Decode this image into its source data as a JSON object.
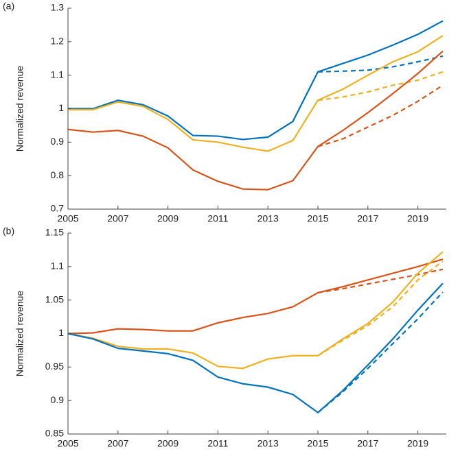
{
  "chart_data": [
    {
      "type": "line",
      "annotation": "(a)",
      "ylabel": "Normalized revenue",
      "x": [
        2005,
        2006,
        2007,
        2008,
        2009,
        2010,
        2011,
        2012,
        2013,
        2014,
        2015,
        2016,
        2017,
        2018,
        2019,
        2020
      ],
      "xlim": [
        2005,
        2020
      ],
      "xticks": [
        2005,
        2007,
        2009,
        2011,
        2013,
        2015,
        2017,
        2019
      ],
      "ylim": [
        0.7,
        1.3
      ],
      "yticks": [
        0.7,
        0.8,
        0.9,
        1,
        1.1,
        1.2,
        1.3
      ],
      "series": [
        {
          "color": "#0072bd",
          "linestyle": "solid",
          "values": [
            1.0,
            1.0,
            1.025,
            1.012,
            0.978,
            0.92,
            0.918,
            0.908,
            0.915,
            0.962,
            1.11,
            1.135,
            1.16,
            1.19,
            1.222,
            1.262
          ]
        },
        {
          "color": "#0072bd",
          "linestyle": "dashed",
          "values": [
            null,
            null,
            null,
            null,
            null,
            null,
            null,
            null,
            null,
            null,
            1.11,
            1.112,
            1.115,
            1.125,
            1.14,
            1.157
          ]
        },
        {
          "color": "#edb120",
          "linestyle": "solid",
          "values": [
            0.997,
            0.997,
            1.02,
            1.007,
            0.968,
            0.907,
            0.9,
            0.885,
            0.873,
            0.905,
            1.025,
            1.058,
            1.1,
            1.14,
            1.17,
            1.218
          ]
        },
        {
          "color": "#edb120",
          "linestyle": "dashed",
          "values": [
            null,
            null,
            null,
            null,
            null,
            null,
            null,
            null,
            null,
            null,
            1.025,
            1.035,
            1.05,
            1.07,
            1.085,
            1.11
          ]
        },
        {
          "color": "#d95319",
          "linestyle": "solid",
          "values": [
            0.938,
            0.93,
            0.935,
            0.918,
            0.883,
            0.817,
            0.783,
            0.76,
            0.758,
            0.785,
            0.887,
            0.935,
            0.988,
            1.045,
            1.105,
            1.172
          ]
        },
        {
          "color": "#d95319",
          "linestyle": "dashed",
          "values": [
            null,
            null,
            null,
            null,
            null,
            null,
            null,
            null,
            null,
            null,
            0.887,
            0.91,
            0.945,
            0.98,
            1.022,
            1.07
          ]
        }
      ]
    },
    {
      "type": "line",
      "annotation": "(b)",
      "ylabel": "Normalized revenue",
      "x": [
        2005,
        2006,
        2007,
        2008,
        2009,
        2010,
        2011,
        2012,
        2013,
        2014,
        2015,
        2016,
        2017,
        2018,
        2019,
        2020
      ],
      "xlim": [
        2005,
        2020
      ],
      "xticks": [
        2005,
        2007,
        2009,
        2011,
        2013,
        2015,
        2017,
        2019
      ],
      "ylim": [
        0.85,
        1.15
      ],
      "yticks": [
        0.85,
        0.9,
        0.95,
        1,
        1.05,
        1.1,
        1.15
      ],
      "series": [
        {
          "color": "#d95319",
          "linestyle": "solid",
          "values": [
            1.0,
            1.001,
            1.007,
            1.006,
            1.004,
            1.004,
            1.016,
            1.024,
            1.03,
            1.04,
            1.061,
            1.07,
            1.08,
            1.09,
            1.1,
            1.111
          ]
        },
        {
          "color": "#d95319",
          "linestyle": "dashed",
          "values": [
            null,
            null,
            null,
            null,
            null,
            null,
            null,
            null,
            null,
            null,
            1.061,
            1.067,
            1.074,
            1.081,
            1.088,
            1.096
          ]
        },
        {
          "color": "#edb120",
          "linestyle": "solid",
          "values": [
            1.0,
            0.993,
            0.981,
            0.977,
            0.977,
            0.971,
            0.951,
            0.948,
            0.962,
            0.967,
            0.967,
            0.992,
            1.015,
            1.047,
            1.09,
            1.122
          ]
        },
        {
          "color": "#edb120",
          "linestyle": "dashed",
          "values": [
            null,
            null,
            null,
            null,
            null,
            null,
            null,
            null,
            null,
            null,
            0.967,
            0.99,
            1.012,
            1.04,
            1.08,
            1.108
          ]
        },
        {
          "color": "#0072bd",
          "linestyle": "solid",
          "values": [
            1.0,
            0.992,
            0.978,
            0.974,
            0.97,
            0.96,
            0.935,
            0.925,
            0.92,
            0.909,
            0.882,
            0.915,
            0.953,
            0.992,
            1.035,
            1.075
          ]
        },
        {
          "color": "#0072bd",
          "linestyle": "dashed",
          "values": [
            null,
            null,
            null,
            null,
            null,
            null,
            null,
            null,
            null,
            null,
            0.882,
            0.913,
            0.948,
            0.985,
            1.022,
            1.062
          ]
        }
      ]
    }
  ]
}
